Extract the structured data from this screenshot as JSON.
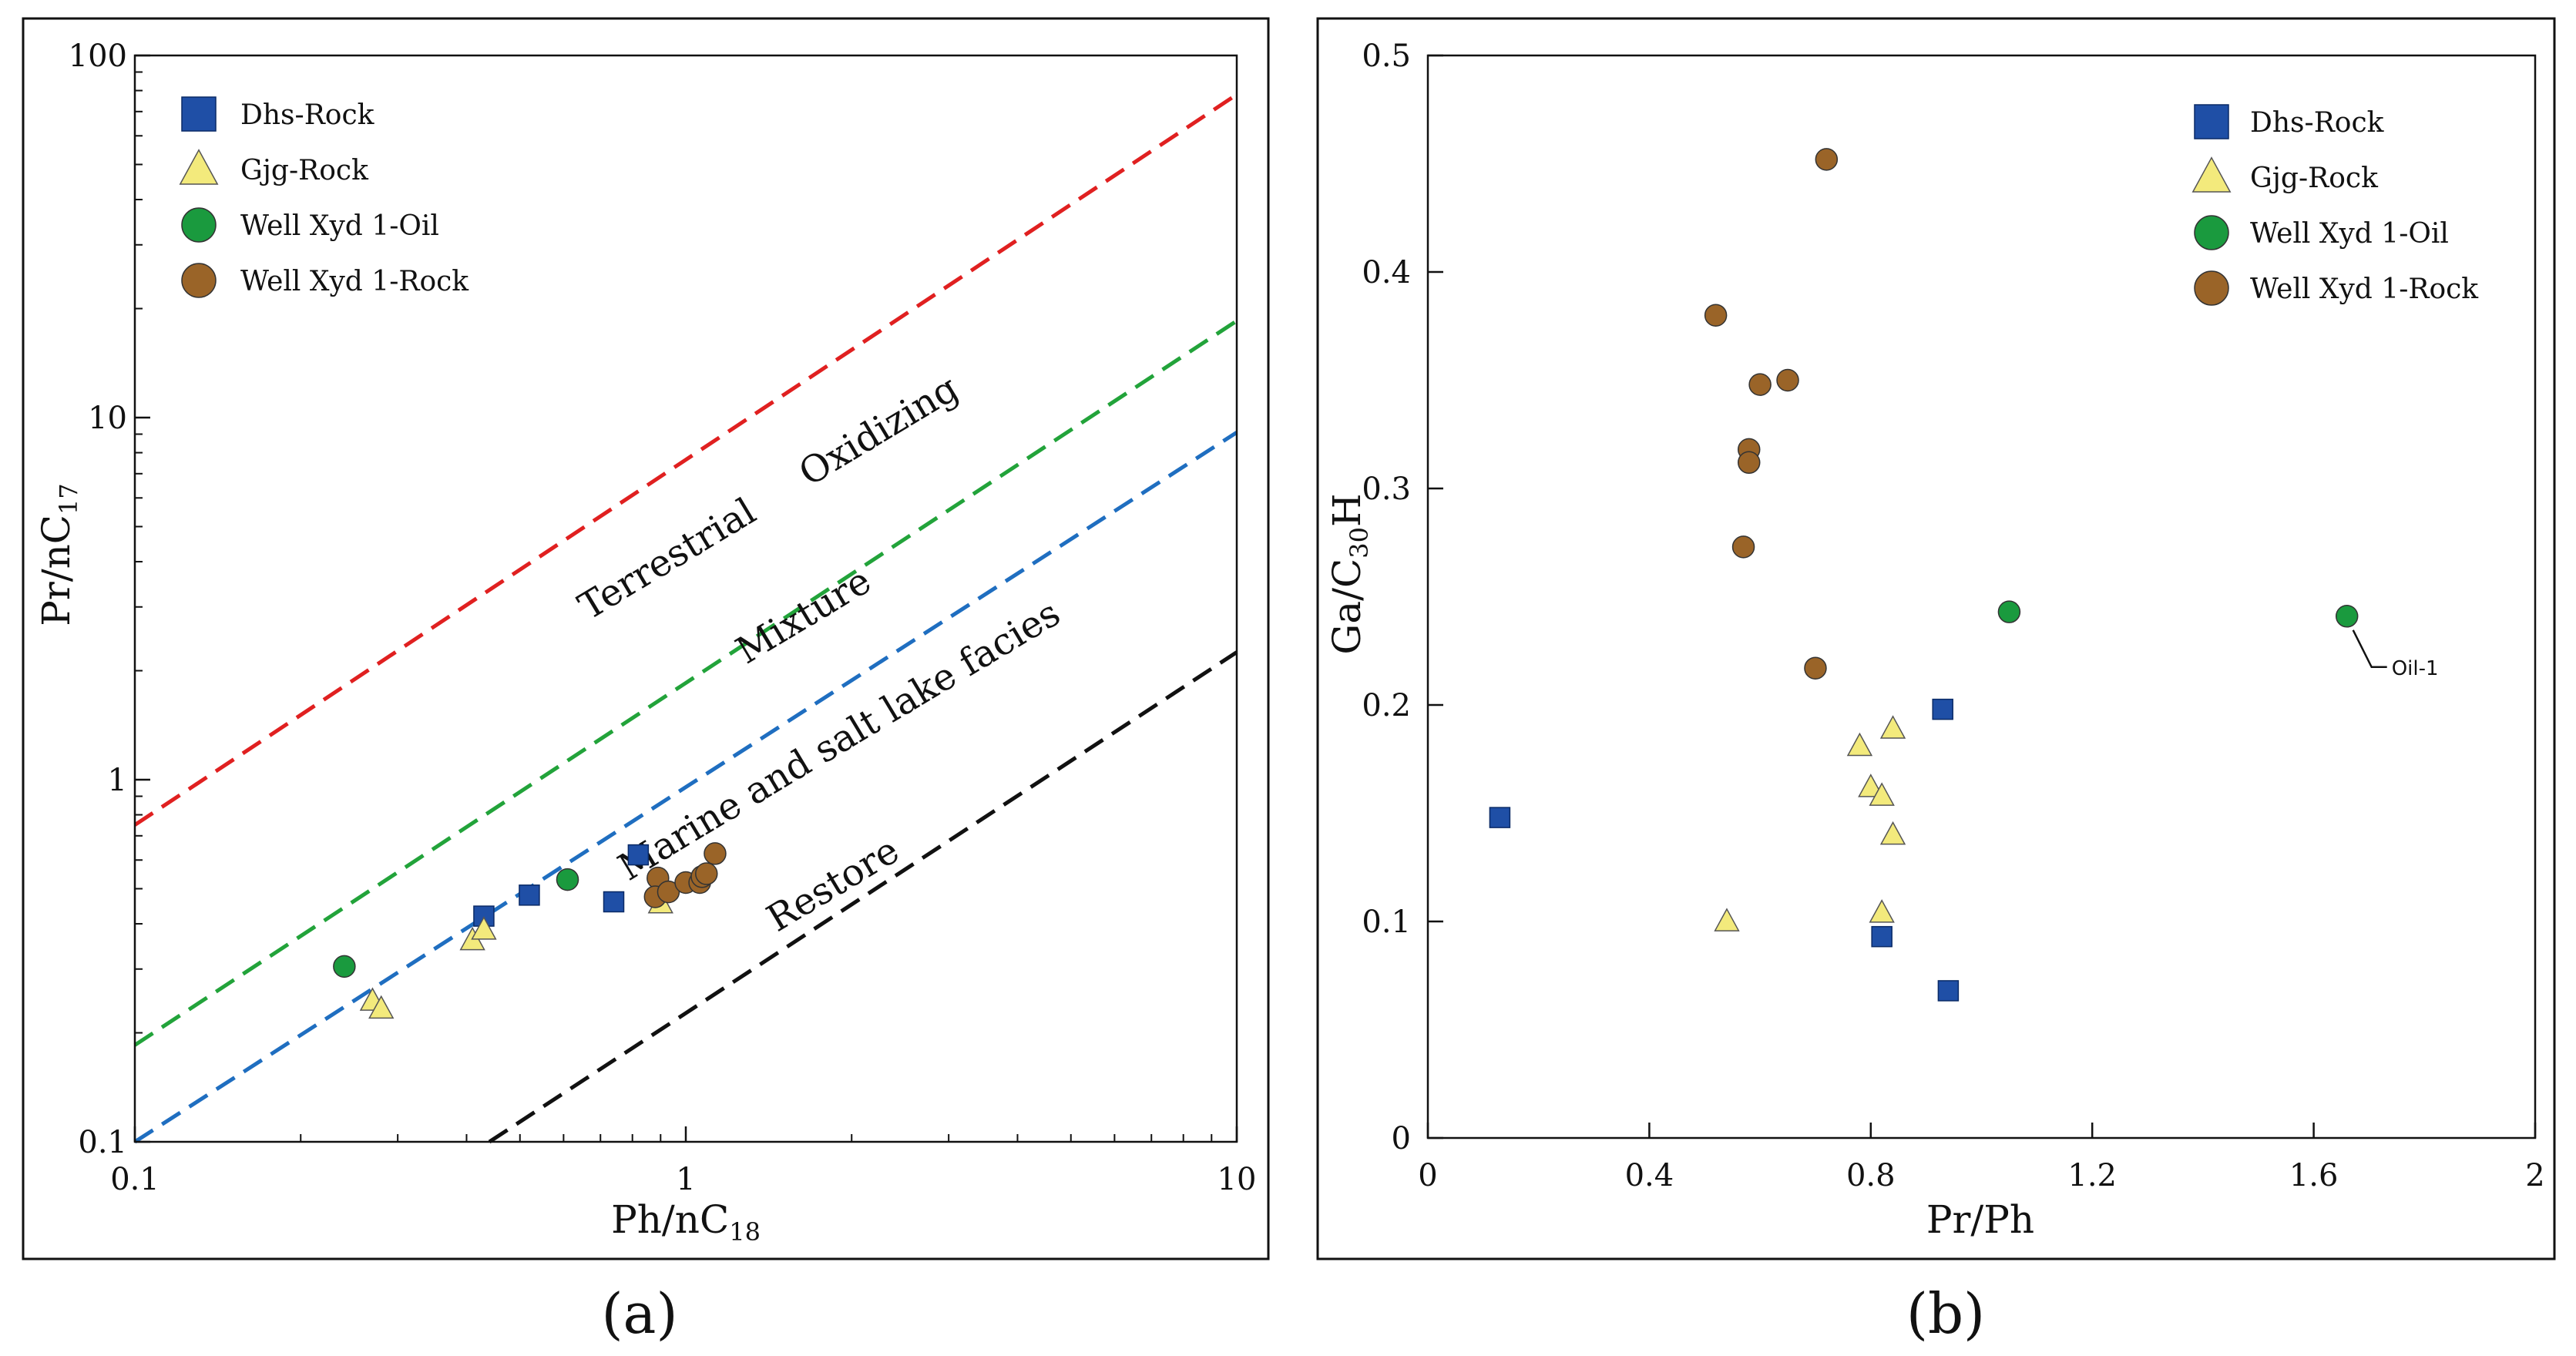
{
  "chart_data": [
    {
      "id": "a",
      "type": "scatter",
      "caption": "(a)",
      "xscale": "log",
      "yscale": "log",
      "xlim": [
        0.1,
        10
      ],
      "ylim": [
        0.1,
        100
      ],
      "x_ticks": [
        {
          "value": 0.1,
          "label": "0.1"
        },
        {
          "value": 1,
          "label": "1"
        },
        {
          "value": 10,
          "label": "10"
        }
      ],
      "y_ticks": [
        {
          "value": 0.1,
          "label": "0.1"
        },
        {
          "value": 1,
          "label": "1"
        },
        {
          "value": 10,
          "label": "10"
        },
        {
          "value": 100,
          "label": "100"
        }
      ],
      "xlabel_main": "Ph/nC",
      "xlabel_sub": "18",
      "ylabel_main": "Pr/nC",
      "ylabel_sub": "17",
      "legend": {
        "position": "top-left",
        "entries": [
          {
            "label": "Dhs-Rock",
            "marker": "square",
            "color": "#1f4fa6"
          },
          {
            "label": "Gjg-Rock",
            "marker": "triangle",
            "color": "#f3ea7c"
          },
          {
            "label": "Well Xyd 1-Oil",
            "marker": "circle",
            "color": "#1a9a3e"
          },
          {
            "label": "Well Xyd 1-Rock",
            "marker": "circle",
            "color": "#9a6428"
          }
        ]
      },
      "lines": [
        {
          "name": "red",
          "color": "#e02020",
          "points": [
            [
              0.1,
              0.75
            ],
            [
              10,
              78
            ]
          ]
        },
        {
          "name": "green",
          "color": "#22a33a",
          "points": [
            [
              0.1,
              0.185
            ],
            [
              10,
              18.5
            ]
          ]
        },
        {
          "name": "blue",
          "color": "#1f6ec0",
          "points": [
            [
              0.1,
              0.1
            ],
            [
              10,
              9.1
            ]
          ]
        },
        {
          "name": "black",
          "color": "#111111",
          "points": [
            [
              0.44,
              0.1
            ],
            [
              10,
              2.25
            ]
          ]
        }
      ],
      "region_labels": [
        {
          "text": "Terrestrial",
          "x": 0.95,
          "y": 3.8,
          "rotate": -31
        },
        {
          "text": "Oxidizing",
          "x": 2.3,
          "y": 8.6,
          "rotate": -31
        },
        {
          "text": "Mixture",
          "x": 1.68,
          "y": 2.65,
          "rotate": -31
        },
        {
          "text": "Marine and salt lake facies",
          "x": 1.95,
          "y": 1.2,
          "rotate": -31
        },
        {
          "text": "Restore",
          "x": 1.9,
          "y": 0.48,
          "rotate": -31
        }
      ],
      "series": [
        {
          "name": "Dhs-Rock",
          "marker": "square",
          "color": "#1f4fa6",
          "points": [
            [
              0.43,
              0.42
            ],
            [
              0.52,
              0.48
            ],
            [
              0.74,
              0.46
            ],
            [
              0.82,
              0.62
            ]
          ]
        },
        {
          "name": "Gjg-Rock",
          "marker": "triangle",
          "color": "#f3ea7c",
          "points": [
            [
              0.27,
              0.245
            ],
            [
              0.28,
              0.233
            ],
            [
              0.41,
              0.36
            ],
            [
              0.43,
              0.385
            ],
            [
              0.9,
              0.455
            ]
          ]
        },
        {
          "name": "Well Xyd 1-Oil",
          "marker": "circle",
          "color": "#1a9a3e",
          "points": [
            [
              0.24,
              0.305
            ],
            [
              0.61,
              0.53
            ]
          ]
        },
        {
          "name": "Well Xyd 1-Rock",
          "marker": "circle",
          "color": "#9a6428",
          "points": [
            [
              0.89,
              0.535
            ],
            [
              0.88,
              0.475
            ],
            [
              0.93,
              0.49
            ],
            [
              1.0,
              0.52
            ],
            [
              1.06,
              0.52
            ],
            [
              1.07,
              0.54
            ],
            [
              1.09,
              0.55
            ],
            [
              1.13,
              0.625
            ]
          ]
        }
      ]
    },
    {
      "id": "b",
      "type": "scatter",
      "caption": "(b)",
      "xscale": "linear",
      "yscale": "linear",
      "xlim": [
        0,
        2
      ],
      "ylim": [
        0,
        0.5
      ],
      "x_ticks": [
        {
          "value": 0,
          "label": "0"
        },
        {
          "value": 0.4,
          "label": "0.4"
        },
        {
          "value": 0.8,
          "label": "0.8"
        },
        {
          "value": 1.2,
          "label": "1.2"
        },
        {
          "value": 1.6,
          "label": "1.6"
        },
        {
          "value": 2,
          "label": "2"
        }
      ],
      "y_ticks": [
        {
          "value": 0,
          "label": "0"
        },
        {
          "value": 0.1,
          "label": "0.1"
        },
        {
          "value": 0.2,
          "label": "0.2"
        },
        {
          "value": 0.3,
          "label": "0.3"
        },
        {
          "value": 0.4,
          "label": "0.4"
        },
        {
          "value": 0.5,
          "label": "0.5"
        }
      ],
      "xlabel": "Pr/Ph",
      "ylabel_pre": "Ga/C",
      "ylabel_sub": "30",
      "ylabel_post": "H",
      "legend": {
        "position": "top-right",
        "entries": [
          {
            "label": "Dhs-Rock",
            "marker": "square",
            "color": "#1f4fa6"
          },
          {
            "label": "Gjg-Rock",
            "marker": "triangle",
            "color": "#f3ea7c"
          },
          {
            "label": "Well Xyd 1-Oil",
            "marker": "circle",
            "color": "#1a9a3e"
          },
          {
            "label": "Well Xyd 1-Rock",
            "marker": "circle",
            "color": "#9a6428"
          }
        ]
      },
      "annotation": {
        "text": "Oil-1",
        "x": 1.66,
        "y": 0.241
      },
      "series": [
        {
          "name": "Dhs-Rock",
          "marker": "square",
          "color": "#1f4fa6",
          "points": [
            [
              0.13,
              0.148
            ],
            [
              0.82,
              0.093
            ],
            [
              0.93,
              0.198
            ],
            [
              0.94,
              0.068
            ]
          ]
        },
        {
          "name": "Gjg-Rock",
          "marker": "triangle",
          "color": "#f3ea7c",
          "points": [
            [
              0.54,
              0.1
            ],
            [
              0.78,
              0.181
            ],
            [
              0.8,
              0.162
            ],
            [
              0.82,
              0.158
            ],
            [
              0.82,
              0.104
            ],
            [
              0.84,
              0.189
            ],
            [
              0.84,
              0.14
            ]
          ]
        },
        {
          "name": "Well Xyd 1-Oil",
          "marker": "circle",
          "color": "#1a9a3e",
          "points": [
            [
              1.05,
              0.243
            ],
            [
              1.66,
              0.241
            ]
          ]
        },
        {
          "name": "Well Xyd 1-Rock",
          "marker": "circle",
          "color": "#9a6428",
          "points": [
            [
              0.72,
              0.452
            ],
            [
              0.52,
              0.38
            ],
            [
              0.6,
              0.348
            ],
            [
              0.65,
              0.35
            ],
            [
              0.58,
              0.318
            ],
            [
              0.58,
              0.312
            ],
            [
              0.57,
              0.273
            ],
            [
              0.7,
              0.217
            ]
          ]
        }
      ]
    }
  ]
}
